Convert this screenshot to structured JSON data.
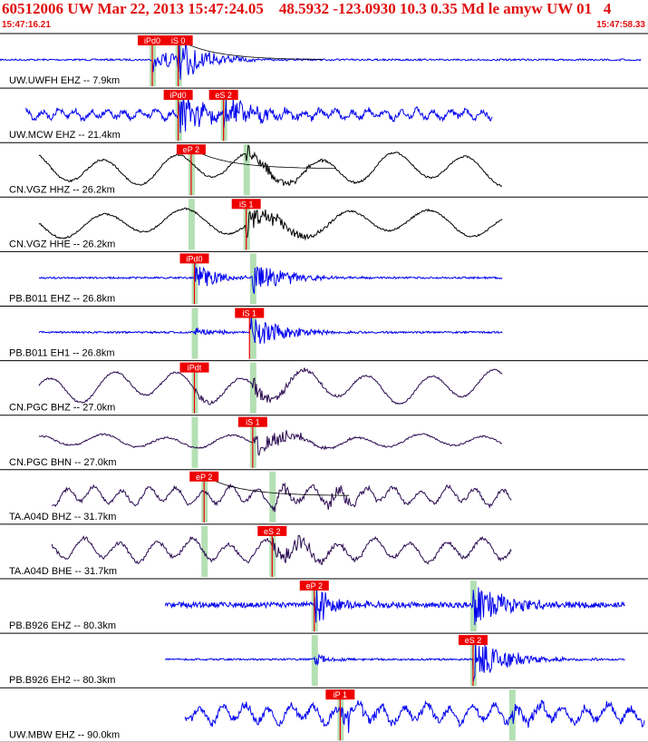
{
  "header": {
    "title": "60512006 UW Mar 22, 2013 15:47:24.05    48.5932 -123.0930 10.3 0.35 Md le amyw UW 01   4",
    "start_time": "15:47:16.21",
    "end_time": "15:47:58.33"
  },
  "colors": {
    "header_text": "#e01010",
    "pick_box": "#ee0000",
    "pick_text": "#ffffff",
    "window": "#b4e0b4",
    "trace_blue": "#0000ee",
    "trace_black": "#000000",
    "trace_purple": "#2a0a50",
    "divider": "#000000"
  },
  "chart_data": {
    "type": "line",
    "title": "60512006 UW Mar 22, 2013 15:47:24.05    48.5932 -123.0930 10.3 0.35 Md le amyw UW 01   4",
    "x_range_time": [
      "15:47:16.21",
      "15:47:58.33"
    ],
    "traces": [
      {
        "label": "UW.UWFH EHZ -- 7.9km",
        "color": "blue",
        "style": "impulsive",
        "start": 0.0,
        "end": 0.99,
        "base_amp": 2,
        "noise": 1,
        "wave": 0,
        "period": 60,
        "picks": [
          {
            "text": "iPd0",
            "pos": 0.235
          },
          {
            "text": "iS 0",
            "pos": 0.275
          }
        ],
        "windows": [
          0.235,
          0.275
        ],
        "burst": {
          "pos": 0.235,
          "amp": 16
        },
        "burst2": {
          "pos": 0.275,
          "amp": 22
        },
        "decay_curve": true
      },
      {
        "label": "UW.MCW EHZ -- 21.4km",
        "color": "blue",
        "style": "noisy",
        "start": 0.04,
        "end": 0.76,
        "base_amp": 5,
        "noise": 3,
        "wave": 4,
        "period": 18,
        "picks": [
          {
            "text": "iPd0",
            "pos": 0.275
          },
          {
            "text": "eS 2",
            "pos": 0.345
          }
        ],
        "windows": [
          0.275,
          0.345
        ],
        "burst": {
          "pos": 0.275,
          "amp": 26
        },
        "burst2": {
          "pos": 0.345,
          "amp": 22
        }
      },
      {
        "label": "CN.VGZ HHZ -- 26.2km",
        "color": "black",
        "style": "long",
        "start": 0.06,
        "end": 0.775,
        "base_amp": 14,
        "noise": 1,
        "wave": 14,
        "period": 80,
        "picks": [
          {
            "text": "eP 2",
            "pos": 0.295
          }
        ],
        "windows": [
          0.295,
          0.38
        ],
        "burst": {
          "pos": 0.38,
          "amp": 10
        },
        "burst2": {
          "pos": 0.41,
          "amp": 6
        },
        "decay_curve": true
      },
      {
        "label": "CN.VGZ HHE -- 26.2km",
        "color": "black",
        "style": "long",
        "start": 0.06,
        "end": 0.775,
        "base_amp": 10,
        "noise": 1,
        "wave": 12,
        "period": 90,
        "picks": [
          {
            "text": "iS 1",
            "pos": 0.38
          }
        ],
        "windows": [
          0.295,
          0.38
        ],
        "burst": {
          "pos": 0.38,
          "amp": 14
        },
        "burst2": {
          "pos": 0.42,
          "amp": 8
        }
      },
      {
        "label": "PB.B011 EHZ -- 26.8km",
        "color": "blue",
        "style": "noisy",
        "start": 0.06,
        "end": 0.775,
        "base_amp": 1,
        "noise": 1,
        "wave": 0,
        "period": 20,
        "picks": [
          {
            "text": "iPd0",
            "pos": 0.3
          }
        ],
        "windows": [
          0.3,
          0.39
        ],
        "burst": {
          "pos": 0.3,
          "amp": 16
        },
        "burst2": {
          "pos": 0.39,
          "amp": 20
        }
      },
      {
        "label": "PB.B011 EH1 -- 26.8km",
        "color": "blue",
        "style": "noisy",
        "start": 0.06,
        "end": 0.775,
        "base_amp": 1,
        "noise": 1,
        "wave": 0,
        "period": 20,
        "picks": [
          {
            "text": "iS 1",
            "pos": 0.385
          }
        ],
        "windows": [
          0.3,
          0.39
        ],
        "burst": {
          "pos": 0.3,
          "amp": 6
        },
        "burst2": {
          "pos": 0.385,
          "amp": 20
        }
      },
      {
        "label": "CN.PGC BHZ -- 27.0km",
        "color": "purple",
        "style": "long",
        "start": 0.06,
        "end": 0.775,
        "base_amp": 12,
        "noise": 1,
        "wave": 14,
        "period": 70,
        "picks": [
          {
            "text": "iPdt",
            "pos": 0.3
          }
        ],
        "windows": [
          0.3,
          0.39
        ],
        "burst": {
          "pos": 0.3,
          "amp": 4
        },
        "burst2": {
          "pos": 0.39,
          "amp": 10
        }
      },
      {
        "label": "CN.PGC BHN -- 27.0km",
        "color": "purple",
        "style": "long",
        "start": 0.06,
        "end": 0.775,
        "base_amp": 7,
        "noise": 1,
        "wave": 6,
        "period": 70,
        "picks": [
          {
            "text": "iS 1",
            "pos": 0.39
          }
        ],
        "windows": [
          0.3,
          0.39
        ],
        "burst": {
          "pos": 0.39,
          "amp": 16
        },
        "burst2": {
          "pos": 0.42,
          "amp": 6
        }
      },
      {
        "label": "TA.A04D BHZ -- 31.7km",
        "color": "purple",
        "style": "long",
        "start": 0.08,
        "end": 0.79,
        "base_amp": 8,
        "noise": 2,
        "wave": 8,
        "period": 30,
        "picks": [
          {
            "text": "eP 2",
            "pos": 0.315
          }
        ],
        "windows": [
          0.315,
          0.42
        ],
        "burst": {
          "pos": 0.42,
          "amp": 10
        },
        "burst2": {
          "pos": 0.505,
          "amp": 10
        },
        "decay_curve": true
      },
      {
        "label": "TA.A04D BHE -- 31.7km",
        "color": "purple",
        "style": "long",
        "start": 0.08,
        "end": 0.79,
        "base_amp": 10,
        "noise": 2,
        "wave": 10,
        "period": 40,
        "picks": [
          {
            "text": "eS 2",
            "pos": 0.42
          }
        ],
        "windows": [
          0.315,
          0.42
        ],
        "burst": {
          "pos": 0.42,
          "amp": 14
        },
        "burst2": {
          "pos": 0.45,
          "amp": 8
        }
      },
      {
        "label": "PB.B926 EHZ -- 80.3km",
        "color": "blue",
        "style": "noisy",
        "start": 0.255,
        "end": 0.965,
        "base_amp": 3,
        "noise": 3,
        "wave": 0,
        "period": 20,
        "picks": [
          {
            "text": "eP 2",
            "pos": 0.485
          }
        ],
        "windows": [
          0.485,
          0.73
        ],
        "burst": {
          "pos": 0.485,
          "amp": 22
        },
        "burst2": {
          "pos": 0.73,
          "amp": 26
        }
      },
      {
        "label": "PB.B926 EH2 -- 80.3km",
        "color": "blue",
        "style": "noisy",
        "start": 0.255,
        "end": 0.965,
        "base_amp": 1,
        "noise": 1,
        "wave": 0,
        "period": 20,
        "picks": [
          {
            "text": "eS 2",
            "pos": 0.73
          }
        ],
        "windows": [
          0.485,
          0.73
        ],
        "burst": {
          "pos": 0.485,
          "amp": 6
        },
        "burst2": {
          "pos": 0.73,
          "amp": 28
        }
      },
      {
        "label": "UW.MBW EHZ -- 90.0km",
        "color": "blue",
        "style": "noisy",
        "start": 0.285,
        "end": 0.995,
        "base_amp": 8,
        "noise": 4,
        "wave": 8,
        "period": 25,
        "picks": [
          {
            "text": "iP 1",
            "pos": 0.525
          }
        ],
        "windows": [
          0.525,
          0.79
        ],
        "burst": {
          "pos": 0.525,
          "amp": 14
        },
        "burst2": {
          "pos": 0.79,
          "amp": 10
        }
      }
    ]
  }
}
